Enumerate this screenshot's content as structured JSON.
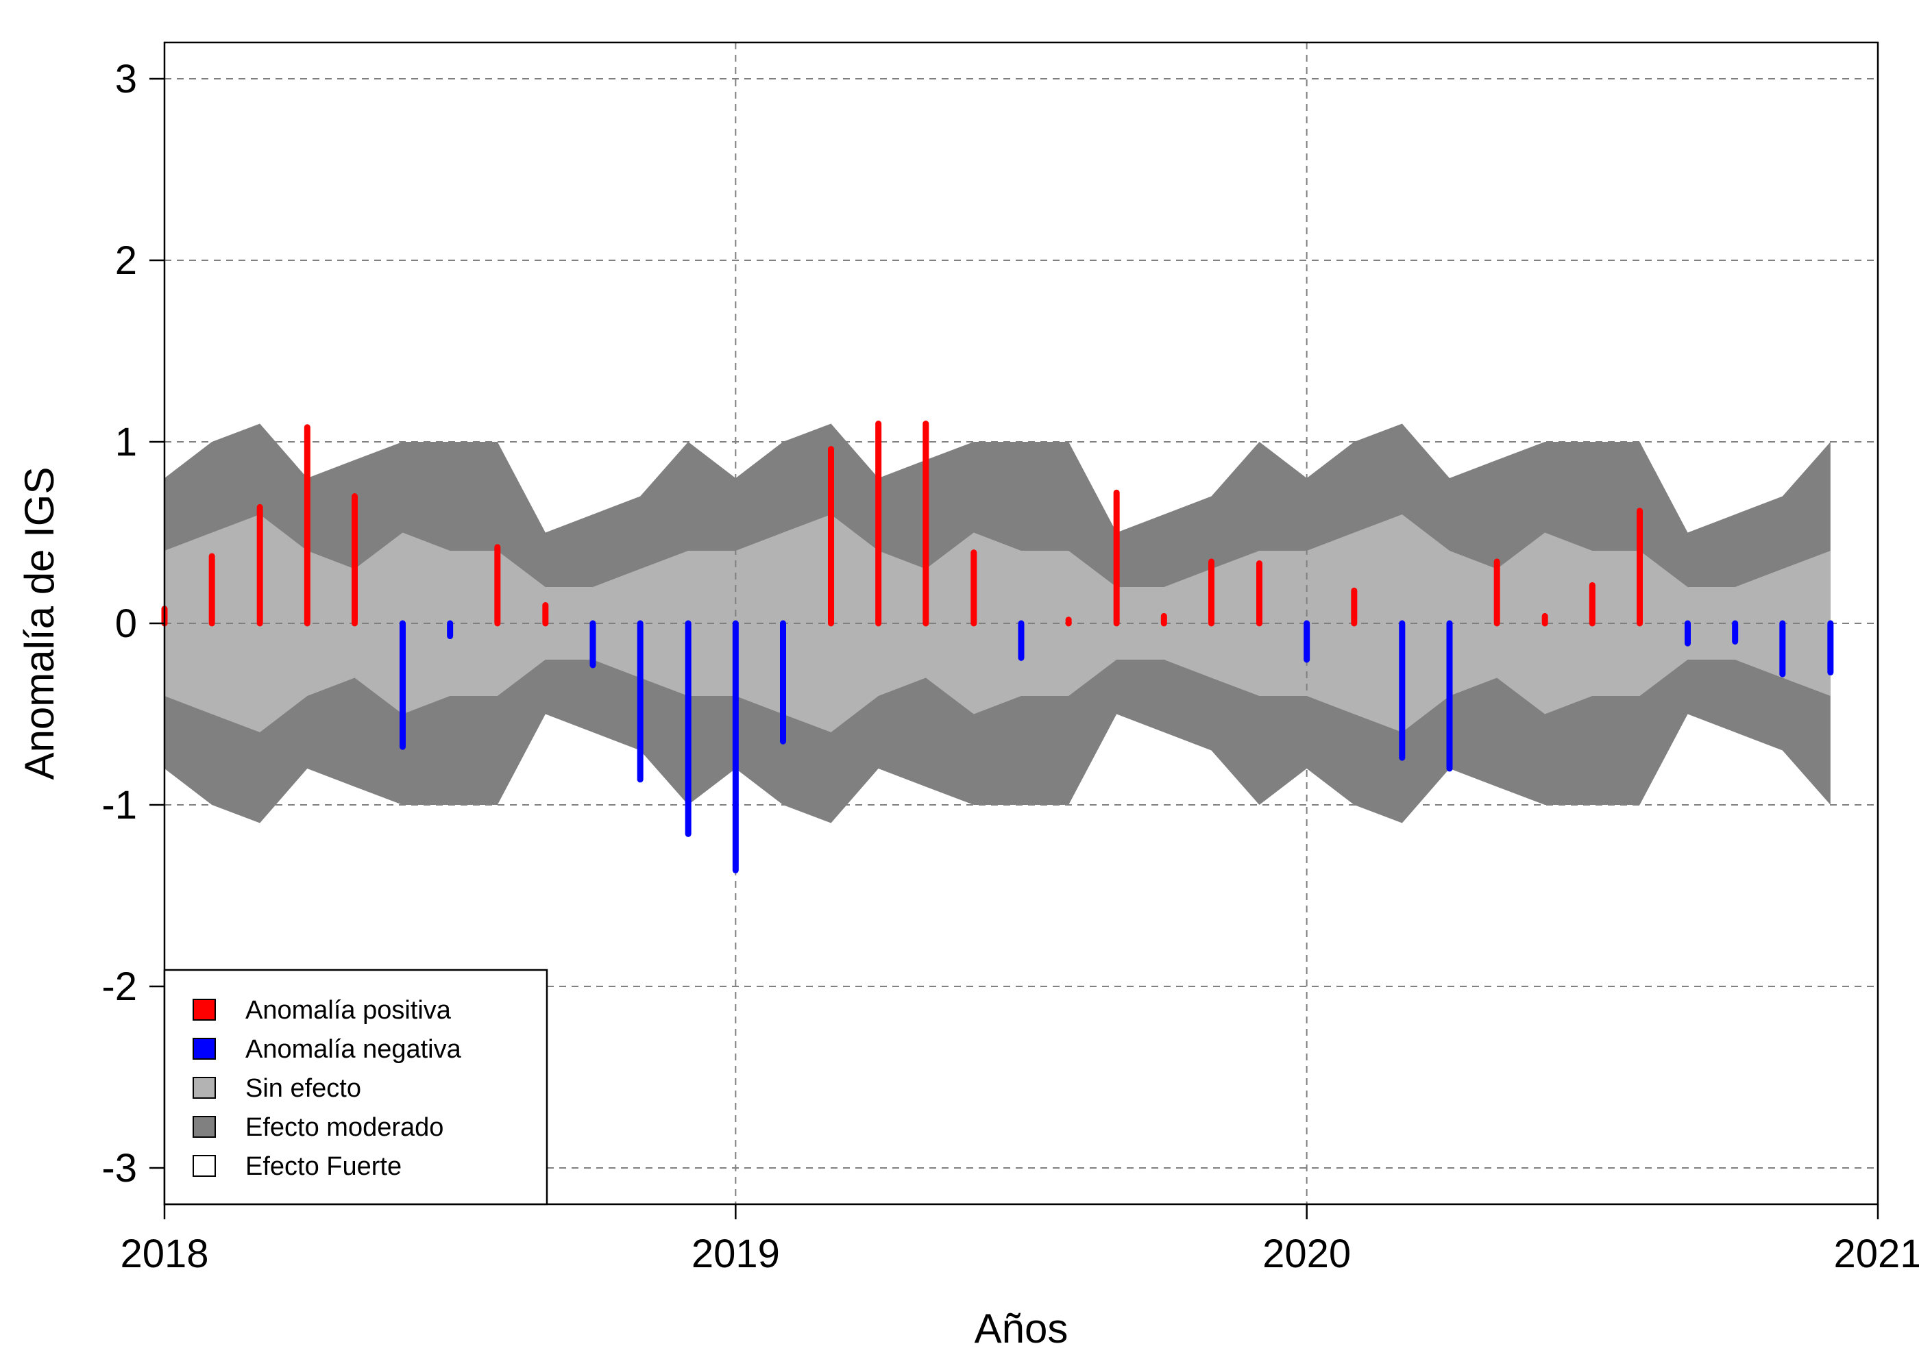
{
  "chart_data": {
    "type": "bar",
    "xlabel": "Años",
    "ylabel": "Anomalía de IGS",
    "xlim": [
      2018.0,
      2021.0
    ],
    "ylim": [
      -3.2,
      3.2
    ],
    "x_ticks": [
      2018,
      2019,
      2020,
      2021
    ],
    "x_tick_labels": [
      "2018",
      "2019",
      "2020",
      "2021"
    ],
    "y_ticks": [
      -3,
      -2,
      -1,
      0,
      1,
      2,
      3
    ],
    "y_tick_labels": [
      "-3",
      "-2",
      "-1",
      "0",
      "1",
      "2",
      "3"
    ],
    "grid": true,
    "x": [
      2018.0,
      2018.083,
      2018.167,
      2018.25,
      2018.333,
      2018.417,
      2018.5,
      2018.583,
      2018.667,
      2018.75,
      2018.833,
      2018.917,
      2019.0,
      2019.083,
      2019.167,
      2019.25,
      2019.333,
      2019.417,
      2019.5,
      2019.583,
      2019.667,
      2019.75,
      2019.833,
      2019.917,
      2020.0,
      2020.083,
      2020.167,
      2020.25,
      2020.333,
      2020.417,
      2020.5,
      2020.583,
      2020.667,
      2020.75,
      2020.833,
      2020.917
    ],
    "anomaly": [
      0.08,
      0.37,
      0.64,
      1.08,
      0.7,
      -0.68,
      -0.07,
      0.42,
      0.1,
      -0.23,
      -0.86,
      -1.16,
      -1.36,
      -0.65,
      0.96,
      1.1,
      1.1,
      0.39,
      -0.19,
      0.02,
      0.72,
      0.04,
      0.34,
      0.33,
      -0.2,
      0.18,
      -0.74,
      -0.8,
      0.34,
      0.04,
      0.21,
      0.62,
      -0.11,
      -0.1,
      -0.28,
      -0.27
    ],
    "sin_efecto_limit": [
      0.4,
      0.5,
      0.6,
      0.4,
      0.3,
      0.5,
      0.4,
      0.4,
      0.2,
      0.2,
      0.3,
      0.4,
      0.4,
      0.5,
      0.6,
      0.4,
      0.3,
      0.5,
      0.4,
      0.4,
      0.2,
      0.2,
      0.3,
      0.4,
      0.4,
      0.5,
      0.6,
      0.4,
      0.3,
      0.5,
      0.4,
      0.4,
      0.2,
      0.2,
      0.3,
      0.4
    ],
    "efecto_moderado_limit": [
      0.8,
      1.0,
      1.1,
      0.8,
      0.9,
      1.0,
      1.0,
      1.0,
      0.5,
      0.6,
      0.7,
      1.0,
      0.8,
      1.0,
      1.1,
      0.8,
      0.9,
      1.0,
      1.0,
      1.0,
      0.5,
      0.6,
      0.7,
      1.0,
      0.8,
      1.0,
      1.1,
      0.8,
      0.9,
      1.0,
      1.0,
      1.0,
      0.5,
      0.6,
      0.7,
      1.0
    ],
    "legend_position": "bottom-left",
    "legend": [
      {
        "label": "Anomalía positiva",
        "color": "#ff0000"
      },
      {
        "label": "Anomalía negativa",
        "color": "#0000ff"
      },
      {
        "label": "Sin efecto",
        "color": "#b3b3b3"
      },
      {
        "label": "Efecto moderado",
        "color": "#808080"
      },
      {
        "label": "Efecto Fuerte",
        "color": "#ffffff"
      }
    ],
    "colors": {
      "positive": "#ff0000",
      "negative": "#0000ff",
      "sin_efecto": "#b3b3b3",
      "efecto_moderado": "#808080",
      "grid": "#808080"
    }
  }
}
